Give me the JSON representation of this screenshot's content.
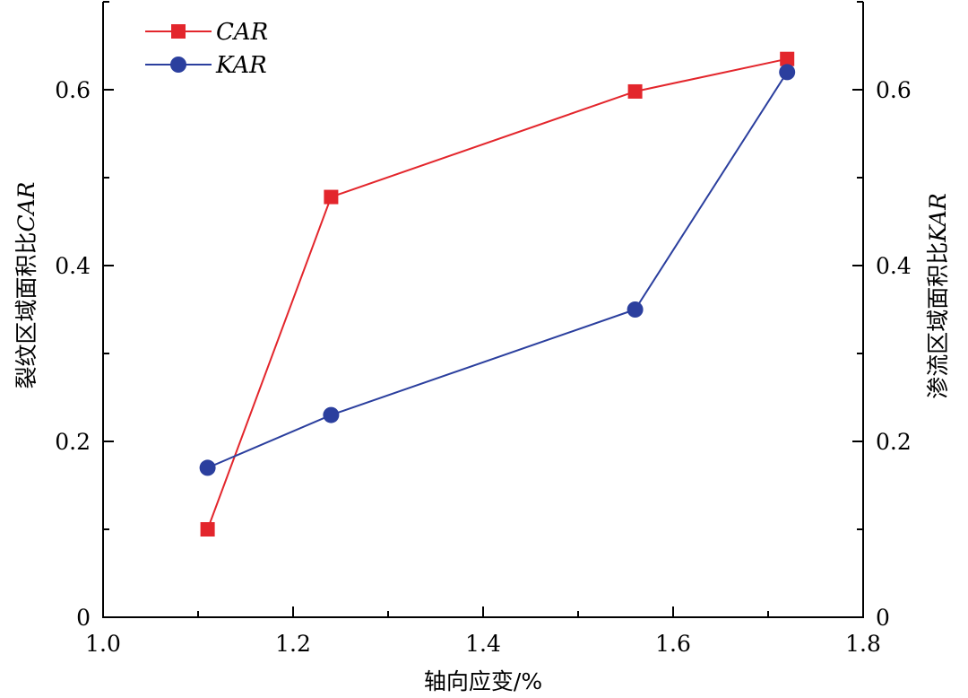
{
  "chart_data": {
    "type": "line",
    "x": [
      1.11,
      1.24,
      1.56,
      1.72
    ],
    "series": [
      {
        "name": "CAR",
        "values": [
          0.1,
          0.478,
          0.598,
          0.635
        ],
        "color": "#e3262c",
        "marker": "square",
        "axis": "left"
      },
      {
        "name": "KAR",
        "values": [
          0.17,
          0.23,
          0.35,
          0.62
        ],
        "color": "#2b3f9e",
        "marker": "circle",
        "axis": "right"
      }
    ],
    "xlabel": "轴向应变/%",
    "ylabel_left": {
      "text": "裂纹区域面积比",
      "italic": "CAR"
    },
    "ylabel_right": {
      "text": "渗流区域面积比",
      "italic": "KAR"
    },
    "xlim": [
      1.0,
      1.8
    ],
    "ylim": [
      0,
      0.7
    ],
    "xticks": [
      "1.0",
      "1.2",
      "1.4",
      "1.6",
      "1.8"
    ],
    "yticks": [
      "0",
      "0.2",
      "0.4",
      "0.6"
    ],
    "legend": "top-left",
    "grid": false
  }
}
